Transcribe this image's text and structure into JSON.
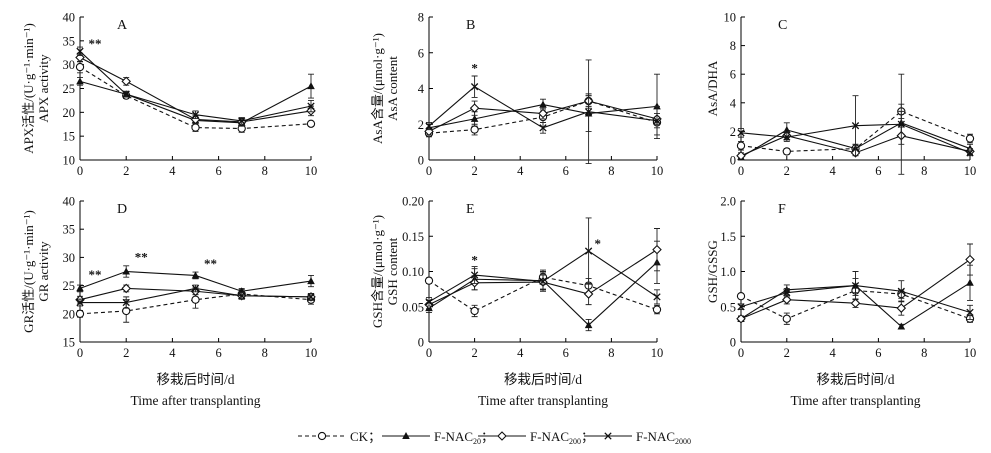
{
  "legend": [
    {
      "name": "CK",
      "sep": "；"
    },
    {
      "name": "F-NAC",
      "sub": "20",
      "sep": "；"
    },
    {
      "name": "F-NAC",
      "sub": "200",
      "sep": "；"
    },
    {
      "name": "F-NAC",
      "sub": "2000",
      "sep": ""
    }
  ],
  "chart_data": [
    {
      "type": "line",
      "panel": "A",
      "ylabel_cn": "APX活性/(U·g⁻¹·min⁻¹)",
      "ylabel_en": "APX activity",
      "xlabel_cn": "",
      "xlabel_en": "",
      "xlim": [
        0,
        10
      ],
      "ylim": [
        10,
        40
      ],
      "xticks": [
        0,
        2,
        4,
        6,
        8,
        10
      ],
      "yticks": [
        10,
        15,
        20,
        25,
        30,
        35,
        40
      ],
      "x": [
        0,
        2,
        5,
        7,
        10
      ],
      "series": [
        {
          "name": "CK",
          "values": [
            29.5,
            23.5,
            16.8,
            16.6,
            17.6
          ],
          "errors": [
            1.2,
            0.6,
            0.8,
            0.8,
            0.5
          ]
        },
        {
          "name": "F-NAC20",
          "values": [
            26.5,
            23.8,
            18.3,
            17.8,
            25.5
          ],
          "errors": [
            0.8,
            0.6,
            0.7,
            0.7,
            2.5
          ]
        },
        {
          "name": "F-NAC200",
          "values": [
            31.5,
            26.5,
            18.5,
            18.0,
            20.3
          ],
          "errors": [
            0.9,
            0.8,
            0.8,
            0.8,
            1.0
          ]
        },
        {
          "name": "F-NAC2000",
          "values": [
            32.8,
            23.8,
            19.5,
            18.2,
            21.3
          ],
          "errors": [
            0.9,
            0.6,
            0.8,
            0.7,
            1.2
          ]
        }
      ],
      "annotations": [
        {
          "x": 0,
          "y": 33.5,
          "text": "**"
        }
      ]
    },
    {
      "type": "line",
      "panel": "B",
      "ylabel_cn": "AsA含量/(μmol·g⁻¹)",
      "ylabel_en": "AsA content",
      "xlabel_cn": "",
      "xlabel_en": "",
      "xlim": [
        0,
        10
      ],
      "ylim": [
        0,
        8
      ],
      "xticks": [
        0,
        2,
        4,
        6,
        8,
        10
      ],
      "yticks": [
        0,
        2,
        4,
        6,
        8
      ],
      "x": [
        0,
        2,
        5,
        7,
        10
      ],
      "series": [
        {
          "name": "CK",
          "values": [
            1.5,
            1.7,
            2.4,
            3.3,
            2.1
          ],
          "errors": [
            0.2,
            0.3,
            0.3,
            0.3,
            0.3
          ]
        },
        {
          "name": "F-NAC20",
          "values": [
            1.8,
            2.3,
            3.1,
            2.6,
            3.0
          ],
          "errors": [
            0.2,
            0.4,
            0.3,
            1.0,
            1.8
          ]
        },
        {
          "name": "F-NAC200",
          "values": [
            1.6,
            2.9,
            2.6,
            3.3,
            2.3
          ],
          "errors": [
            0.2,
            0.4,
            0.3,
            0.4,
            0.3
          ]
        },
        {
          "name": "F-NAC2000",
          "values": [
            1.9,
            4.1,
            1.8,
            2.7,
            2.2
          ],
          "errors": [
            0.2,
            0.6,
            0.3,
            2.9,
            0.8
          ]
        }
      ],
      "annotations": [
        {
          "x": 2,
          "y": 4.9,
          "text": "*"
        }
      ]
    },
    {
      "type": "line",
      "panel": "C",
      "ylabel_cn": "",
      "ylabel_en": "AsA/DHA",
      "xlabel_cn": "",
      "xlabel_en": "",
      "xlim": [
        0,
        10
      ],
      "ylim": [
        0,
        10
      ],
      "xticks": [
        0,
        2,
        4,
        6,
        8,
        10
      ],
      "yticks": [
        0,
        2,
        4,
        6,
        8,
        10
      ],
      "x": [
        0,
        2,
        5,
        7,
        10
      ],
      "series": [
        {
          "name": "CK",
          "values": [
            1.0,
            0.6,
            0.8,
            3.4,
            1.5
          ],
          "errors": [
            0.3,
            0.2,
            0.3,
            0.5,
            0.3
          ]
        },
        {
          "name": "F-NAC20",
          "values": [
            0.2,
            2.1,
            0.8,
            2.6,
            0.8
          ],
          "errors": [
            0.2,
            0.5,
            0.3,
            0.8,
            0.3
          ]
        },
        {
          "name": "F-NAC200",
          "values": [
            0.3,
            1.7,
            0.5,
            1.7,
            0.6
          ],
          "errors": [
            0.2,
            0.3,
            0.2,
            0.6,
            0.2
          ]
        },
        {
          "name": "F-NAC2000",
          "values": [
            1.9,
            1.6,
            2.4,
            2.5,
            0.5
          ],
          "errors": [
            0.3,
            0.3,
            2.1,
            3.5,
            0.2
          ]
        }
      ],
      "annotations": []
    },
    {
      "type": "line",
      "panel": "D",
      "ylabel_cn": "GR活性/(U·g⁻¹·min⁻¹)",
      "ylabel_en": "GR activity",
      "xlabel_cn": "移栽后时间/d",
      "xlabel_en": "Time after transplanting",
      "xlim": [
        0,
        10
      ],
      "ylim": [
        15,
        40
      ],
      "xticks": [
        0,
        2,
        4,
        6,
        8,
        10
      ],
      "yticks": [
        15,
        20,
        25,
        30,
        35,
        40
      ],
      "x": [
        0,
        2,
        5,
        7,
        10
      ],
      "series": [
        {
          "name": "CK",
          "values": [
            20.0,
            20.5,
            22.5,
            23.5,
            22.5
          ],
          "errors": [
            0.6,
            2.0,
            1.5,
            0.8,
            0.8
          ]
        },
        {
          "name": "F-NAC20",
          "values": [
            24.5,
            27.5,
            26.8,
            24.0,
            25.8
          ],
          "errors": [
            0.6,
            1.0,
            0.6,
            0.5,
            1.0
          ]
        },
        {
          "name": "F-NAC200",
          "values": [
            22.5,
            24.5,
            24.0,
            23.2,
            23.0
          ],
          "errors": [
            0.6,
            0.6,
            0.6,
            0.6,
            0.6
          ]
        },
        {
          "name": "F-NAC2000",
          "values": [
            22.0,
            22.0,
            24.5,
            23.2,
            23.0
          ],
          "errors": [
            0.6,
            1.0,
            0.6,
            0.6,
            0.6
          ]
        }
      ],
      "annotations": [
        {
          "x": 0,
          "y": 26.2,
          "text": "**"
        },
        {
          "x": 2,
          "y": 29.3,
          "text": "**"
        },
        {
          "x": 5,
          "y": 28.1,
          "text": "**"
        }
      ]
    },
    {
      "type": "line",
      "panel": "E",
      "ylabel_cn": "GSH含量/(μmol·g⁻¹)",
      "ylabel_en": "GSH content",
      "xlabel_cn": "移栽后时间/d",
      "xlabel_en": "Time after transplanting",
      "xlim": [
        0,
        10
      ],
      "ylim": [
        0,
        0.2
      ],
      "xticks": [
        0,
        2,
        4,
        6,
        8,
        10
      ],
      "yticks": [
        0,
        0.05,
        0.1,
        0.15,
        0.2
      ],
      "ytick_labels": [
        "0",
        "0.05",
        "0.10",
        "0.15",
        "0.20"
      ],
      "x": [
        0,
        2,
        5,
        7,
        10
      ],
      "series": [
        {
          "name": "CK",
          "values": [
            0.087,
            0.044,
            0.092,
            0.08,
            0.046
          ],
          "errors": [
            0.004,
            0.008,
            0.008,
            0.01,
            0.006
          ]
        },
        {
          "name": "F-NAC20",
          "values": [
            0.048,
            0.089,
            0.087,
            0.024,
            0.113
          ],
          "errors": [
            0.006,
            0.015,
            0.015,
            0.008,
            0.03
          ]
        },
        {
          "name": "F-NAC200",
          "values": [
            0.053,
            0.084,
            0.085,
            0.068,
            0.131
          ],
          "errors": [
            0.006,
            0.01,
            0.01,
            0.015,
            0.03
          ]
        },
        {
          "name": "F-NAC2000",
          "values": [
            0.057,
            0.095,
            0.086,
            0.129,
            0.064
          ],
          "errors": [
            0.006,
            0.012,
            0.012,
            0.047,
            0.01
          ]
        }
      ],
      "annotations": [
        {
          "x": 2,
          "y": 0.11,
          "text": "*"
        },
        {
          "x": 7.4,
          "y": 0.133,
          "text": "*"
        }
      ]
    },
    {
      "type": "line",
      "panel": "F",
      "ylabel_cn": "",
      "ylabel_en": "GSH/GSSG",
      "xlabel_cn": "移栽后时间/d",
      "xlabel_en": "Time after transplanting",
      "xlim": [
        0,
        10
      ],
      "ylim": [
        0,
        2
      ],
      "xticks": [
        0,
        2,
        4,
        6,
        8,
        10
      ],
      "yticks": [
        0,
        0.5,
        1,
        1.5,
        2
      ],
      "ytick_labels": [
        "0",
        "0.5",
        "1.0",
        "1.5",
        "2.0"
      ],
      "x": [
        0,
        2,
        5,
        7,
        10
      ],
      "series": [
        {
          "name": "CK",
          "values": [
            0.65,
            0.33,
            0.73,
            0.68,
            0.33
          ],
          "errors": [
            0.03,
            0.08,
            0.07,
            0.06,
            0.05
          ]
        },
        {
          "name": "F-NAC20",
          "values": [
            0.33,
            0.74,
            0.8,
            0.22,
            0.84
          ],
          "errors": [
            0.04,
            0.07,
            0.1,
            0.03,
            0.25
          ]
        },
        {
          "name": "F-NAC200",
          "values": [
            0.33,
            0.6,
            0.55,
            0.48,
            1.17
          ],
          "errors": [
            0.03,
            0.06,
            0.06,
            0.1,
            0.22
          ]
        },
        {
          "name": "F-NAC2000",
          "values": [
            0.5,
            0.7,
            0.8,
            0.72,
            0.42
          ],
          "errors": [
            0.04,
            0.06,
            0.2,
            0.15,
            0.1
          ]
        }
      ],
      "annotations": []
    }
  ]
}
